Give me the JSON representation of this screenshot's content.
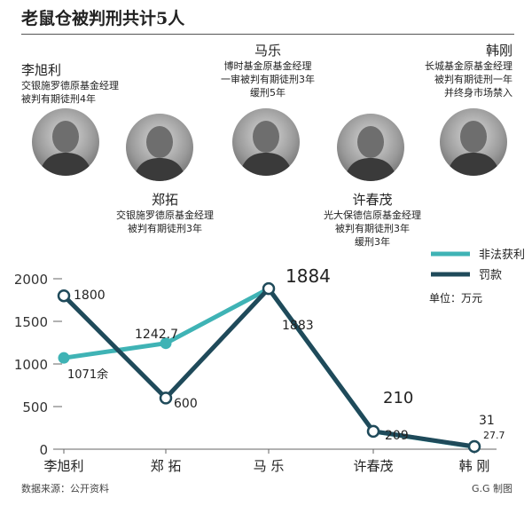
{
  "title": "老鼠仓被判刑共计5人",
  "people": [
    {
      "name": "李旭利",
      "lines": [
        "交银施罗德原基金经理",
        "被判有期徒刑4年"
      ]
    },
    {
      "name": "郑拓",
      "lines": [
        "交银施罗德原基金经理",
        "被判有期徒刑3年"
      ]
    },
    {
      "name": "马乐",
      "lines": [
        "博时基金原基金经理",
        "一审被判有期徒刑3年",
        "缓刑5年"
      ]
    },
    {
      "name": "许春茂",
      "lines": [
        "光大保德信原基金经理",
        "被判有期徒刑3年",
        "缓刑3年"
      ]
    },
    {
      "name": "韩刚",
      "lines": [
        "长城基金原基金经理",
        "被判有期徒刑一年",
        "并终身市场禁入"
      ]
    }
  ],
  "chart_data": {
    "type": "line",
    "categories": [
      "李旭利",
      "郑 拓",
      "马 乐",
      "许春茂",
      "韩 刚"
    ],
    "series": [
      {
        "name": "非法获利",
        "values": [
          1071,
          1242.7,
          1883,
          209,
          27.7
        ],
        "color": "#3fb3b5",
        "labels": [
          "1071余",
          "1242.7",
          "1883",
          "209",
          "27.7"
        ]
      },
      {
        "name": "罚款",
        "values": [
          1800,
          600,
          1884,
          210,
          31
        ],
        "color": "#1f4a5a",
        "labels": [
          "1800",
          "600",
          "1884",
          "210",
          "31"
        ]
      }
    ],
    "yticks": [
      "0",
      "500",
      "1000",
      "1500",
      "2000"
    ],
    "ylim": [
      0,
      2000
    ],
    "unit": "单位：万元",
    "legend_position": "top-right"
  },
  "source": "数据来源：公开资料",
  "credit": "G.G 制图"
}
